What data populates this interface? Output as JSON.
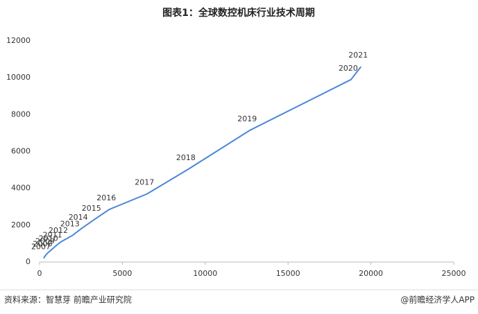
{
  "chart_data": {
    "type": "line",
    "title": "图表1：全球数控机床行业技术周期",
    "x": [
      250,
      350,
      500,
      700,
      950,
      1300,
      2000,
      2500,
      3300,
      4200,
      6500,
      9000,
      12700,
      18800,
      19400
    ],
    "values": [
      200,
      350,
      500,
      650,
      850,
      1100,
      1450,
      1800,
      2300,
      2850,
      3700,
      5050,
      7150,
      9900,
      10600
    ],
    "point_labels": [
      "2007",
      "2008",
      "2009",
      "2010",
      "2011",
      "2012",
      "2013",
      "2014",
      "2015",
      "2016",
      "2017",
      "2018",
      "2019",
      "2020",
      "2021"
    ],
    "color": "#4a86d8",
    "xlim": [
      0,
      25000
    ],
    "xticks": [
      0,
      5000,
      10000,
      15000,
      20000,
      25000
    ],
    "ylim": [
      0,
      12000
    ],
    "yticks": [
      0,
      2000,
      4000,
      6000,
      8000,
      10000,
      12000
    ]
  },
  "footer": {
    "source": "资料来源：智慧芽 前瞻产业研究院",
    "credit": "@前瞻经济学人APP"
  }
}
